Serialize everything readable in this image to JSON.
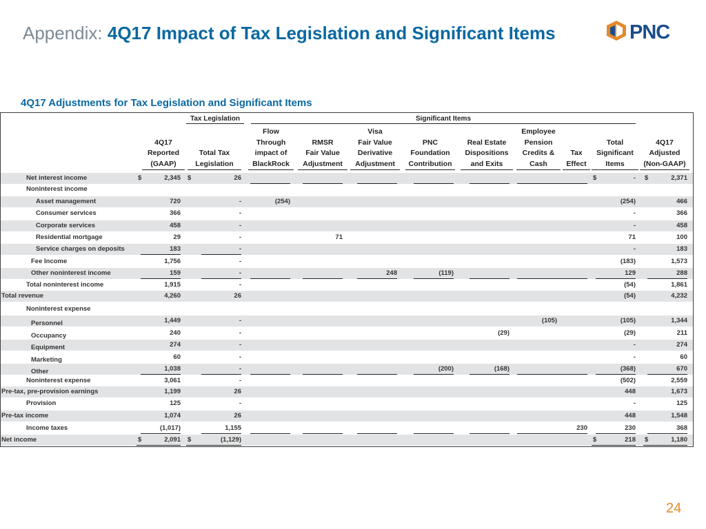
{
  "header": {
    "prefix": "Appendix: ",
    "title": "4Q17 Impact of Tax Legislation and Significant Items"
  },
  "logo": {
    "wordmark": "PNC",
    "icon": "pnc-logo-icon",
    "color": "#1a4d8c",
    "accent": "#e38a2c"
  },
  "subtitle": "4Q17 Adjustments for Tax Legislation and Significant Items",
  "groups": {
    "tax": "Tax Legislation",
    "significant": "Significant Items"
  },
  "columns": [
    [
      "4Q17",
      "Reported",
      "(GAAP)"
    ],
    [
      "Total Tax",
      "Legislation"
    ],
    [
      "Flow",
      "Through",
      "impact of",
      "BlackRock"
    ],
    [
      "RMSR",
      "Fair Value",
      "Adjustment"
    ],
    [
      "Visa",
      "Fair Value",
      "Derivative",
      "Adjustment"
    ],
    [
      "PNC",
      "Foundation",
      "Contribution"
    ],
    [
      "Real Estate",
      "Dispositions",
      "and Exits"
    ],
    [
      "Employee",
      "Pension",
      "Credits &",
      "Cash"
    ],
    [
      "Tax",
      "Effect"
    ],
    [
      "Total",
      "Significant",
      "Items"
    ],
    [
      "4Q17",
      "Adjusted",
      "(Non-GAAP)"
    ]
  ],
  "rows": [
    {
      "label": "Net interest income",
      "values": [
        "2,345",
        "26",
        "",
        "",
        "",
        "",
        "",
        "",
        "",
        "-",
        "2,371"
      ]
    },
    {
      "label": "Noninterest income",
      "values": [
        "",
        "",
        "",
        "",
        "",
        "",
        "",
        "",
        "",
        "",
        ""
      ]
    },
    {
      "label": "Asset management",
      "values": [
        "720",
        "-",
        "(254)",
        "",
        "",
        "",
        "",
        "",
        "",
        "(254)",
        "466"
      ]
    },
    {
      "label": "Consumer services",
      "values": [
        "366",
        "-",
        "",
        "",
        "",
        "",
        "",
        "",
        "",
        "-",
        "366"
      ]
    },
    {
      "label": "Corporate services",
      "values": [
        "458",
        "-",
        "",
        "",
        "",
        "",
        "",
        "",
        "",
        "-",
        "458"
      ]
    },
    {
      "label": "Residential mortgage",
      "values": [
        "29",
        "-",
        "",
        "71",
        "",
        "",
        "",
        "",
        "",
        "71",
        "100"
      ]
    },
    {
      "label": "Service charges on deposits",
      "values": [
        "183",
        "-",
        "",
        "",
        "",
        "",
        "",
        "",
        "",
        "-",
        "183"
      ]
    },
    {
      "label": "Fee Income",
      "values": [
        "1,756",
        "-",
        "",
        "",
        "",
        "",
        "",
        "",
        "",
        "(183)",
        "1,573"
      ]
    },
    {
      "label": "Other noninterest income",
      "values": [
        "159",
        "-",
        "",
        "",
        "248",
        "(119)",
        "",
        "",
        "",
        "129",
        "288"
      ]
    },
    {
      "label": "Total noninterest income",
      "values": [
        "1,915",
        "-",
        "",
        "",
        "",
        "",
        "",
        "",
        "",
        "(54)",
        "1,861"
      ]
    },
    {
      "label": "Total revenue",
      "values": [
        "4,260",
        "26",
        "",
        "",
        "",
        "",
        "",
        "",
        "",
        "(54)",
        "4,232"
      ]
    },
    {
      "label": "Noninterest expense",
      "values": [
        "",
        "",
        "",
        "",
        "",
        "",
        "",
        "",
        "",
        "",
        ""
      ]
    },
    {
      "label": "Personnel",
      "values": [
        "1,449",
        "-",
        "",
        "",
        "",
        "",
        "",
        "(105)",
        "",
        "(105)",
        "1,344"
      ]
    },
    {
      "label": "Occupancy",
      "values": [
        "240",
        "-",
        "",
        "",
        "",
        "",
        "(29)",
        "",
        "",
        "(29)",
        "211"
      ]
    },
    {
      "label": "Equipment",
      "values": [
        "274",
        "-",
        "",
        "",
        "",
        "",
        "",
        "",
        "",
        "-",
        "274"
      ]
    },
    {
      "label": "Marketing",
      "values": [
        "60",
        "-",
        "",
        "",
        "",
        "",
        "",
        "",
        "",
        "-",
        "60"
      ]
    },
    {
      "label": "Other",
      "values": [
        "1,038",
        "-",
        "",
        "",
        "",
        "(200)",
        "(168)",
        "",
        "",
        "(368)",
        "670"
      ]
    },
    {
      "label": "Noninterest expense",
      "values": [
        "3,061",
        "-",
        "",
        "",
        "",
        "",
        "",
        "",
        "",
        "(502)",
        "2,559"
      ]
    },
    {
      "label": "Pre-tax, pre-provision earnings",
      "values": [
        "1,199",
        "26",
        "",
        "",
        "",
        "",
        "",
        "",
        "",
        "448",
        "1,673"
      ]
    },
    {
      "label": "Provision",
      "values": [
        "125",
        "-",
        "",
        "",
        "",
        "",
        "",
        "",
        "",
        "-",
        "125"
      ]
    },
    {
      "label": "Pre-tax income",
      "values": [
        "1,074",
        "26",
        "",
        "",
        "",
        "",
        "",
        "",
        "",
        "448",
        "1,548"
      ]
    },
    {
      "label": "Income taxes",
      "values": [
        "(1,017)",
        "1,155",
        "",
        "",
        "",
        "",
        "",
        "",
        "230",
        "230",
        "368"
      ]
    },
    {
      "label": "Net income",
      "values": [
        "2,091",
        "(1,129)",
        "",
        "",
        "",
        "",
        "",
        "",
        "",
        "218",
        "1,180"
      ]
    }
  ],
  "currency_symbol": "$",
  "page_number": "24"
}
